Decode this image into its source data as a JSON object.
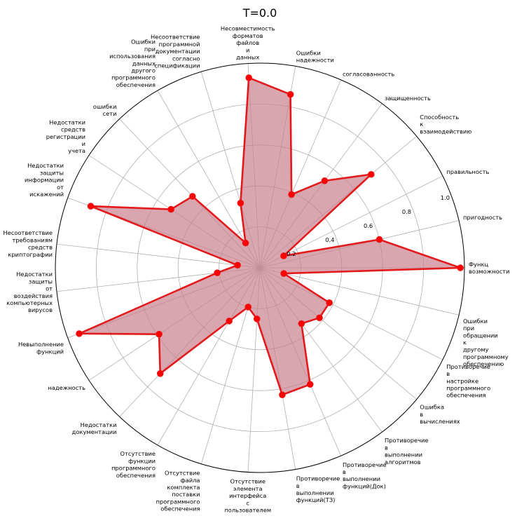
{
  "chart_data": {
    "type": "radar",
    "title": "T=0.0",
    "categories": [
      "Функц\nвозможности",
      "пригодность",
      "правильность",
      "Способность\nк\nвзаимодействию",
      "защищенность",
      "согласованность",
      "Ошибки\nнадежности",
      "Несовместимость\nформатов\nфайлов\nи\nданных",
      "Несоответствие\nпрограммной\nдокументации\nсогласно\nспецификации",
      "Ошибки\nпри\nиспользования\nданных\nдругого\nпрограммного\nобеспечения",
      "ошибки\nсети",
      "Недостатки\nсредств\nрегистрации\nи\nучета",
      "Недостатки\nзащиты\nинформации\nот\nискажений",
      "Несоответствие\nтребованиям\nсредств\nкриптографии",
      "Недостатки\nзащиты\nот\nвоздействия\nкомпьютерных\nвирусов",
      "Невыполнение\nфункций",
      "надежность",
      "Недостатки\nдокументации",
      "Отсутствие\nфункции\nпрограммного\nобеспечения",
      "Отсутствие\nфайла\nкомплекта\nпоставки\nпрограммного\nобеспечения",
      "Отсутствие\nэлемента\nинтерфейса\nс\nпользователем",
      "Противоречие\nв\nвыполнении\nфункций(ТЗ)",
      "Противоречие\nв\nвыполнении\nфункций(Док)",
      "Противоречие\nв\nвыполнении\nалгоритмов",
      "Ошибка\nв\nвычислениях",
      "Противоречие\nв\nнастройке\nпрограммного\nобеспечения",
      "Ошибки\nпри\nобращении\nк\nдругому\nпрограммному\nобеспечению"
    ],
    "series": [
      {
        "values": [
          0.98,
          0.6,
          0.13,
          0.71,
          0.53,
          0.39,
          0.86,
          0.93,
          0.33,
          0.14,
          0.48,
          0.52,
          0.88,
          0.11,
          0.21,
          0.94,
          0.59,
          0.71,
          0.3,
          0.2,
          0.25,
          0.63,
          0.62,
          0.34,
          0.38,
          0.38,
          0.12
        ]
      }
    ],
    "rlim": [
      0,
      1.0
    ],
    "rticks": [
      "0.2",
      "0.4",
      "0.6",
      "0.8",
      "1.0"
    ],
    "rtick_values": [
      0.2,
      0.4,
      0.6,
      0.8,
      1.0
    ],
    "grid": true,
    "colors": {
      "line": "#e31a1c",
      "fill": "#c9808e",
      "marker": "#ff0000",
      "grid": "#b0b0b0",
      "frame": "#000000"
    }
  }
}
